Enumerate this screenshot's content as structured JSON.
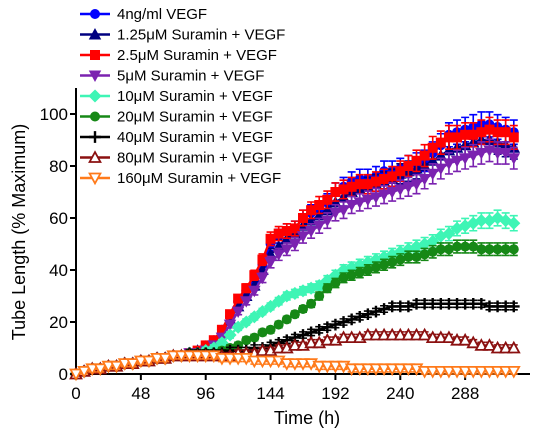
{
  "chart_data": {
    "type": "line",
    "title": "",
    "xlabel": "Time (h)",
    "ylabel": "Tube Length (% Maximum)",
    "xlim": [
      0,
      336
    ],
    "ylim": [
      0,
      110
    ],
    "x_ticks": [
      0,
      48,
      96,
      144,
      192,
      240,
      288
    ],
    "y_ticks": [
      0,
      20,
      40,
      60,
      80,
      100
    ],
    "x": [
      0,
      6,
      12,
      18,
      24,
      30,
      36,
      42,
      48,
      54,
      60,
      66,
      72,
      78,
      84,
      90,
      96,
      102,
      108,
      114,
      120,
      126,
      132,
      138,
      144,
      150,
      156,
      162,
      168,
      174,
      180,
      186,
      192,
      198,
      204,
      210,
      216,
      222,
      228,
      234,
      240,
      246,
      252,
      258,
      264,
      270,
      276,
      282,
      288,
      294,
      300,
      306,
      312,
      318,
      324
    ],
    "legend_position": "top-left",
    "error_bars": true,
    "series": [
      {
        "name": "4ng/ml VEGF",
        "color": "#0000ff",
        "marker": "circle",
        "values": [
          0,
          1,
          2,
          2,
          3,
          3,
          4,
          4,
          5,
          5,
          6,
          6,
          7,
          7,
          8,
          9,
          11,
          13,
          17,
          22,
          28,
          32,
          36,
          42,
          50,
          53,
          55,
          56,
          60,
          62,
          63,
          66,
          70,
          72,
          74,
          75,
          75,
          76,
          78,
          78,
          79,
          80,
          81,
          82,
          85,
          88,
          92,
          93,
          94,
          95,
          96,
          96,
          95,
          94,
          93
        ]
      },
      {
        "name": "1.25μM Suramin + VEGF",
        "color": "#000080",
        "marker": "triangle-up",
        "values": [
          0,
          1,
          2,
          2,
          3,
          3,
          4,
          4,
          5,
          5,
          6,
          6,
          7,
          7,
          8,
          9,
          10,
          12,
          16,
          21,
          26,
          30,
          34,
          40,
          46,
          49,
          52,
          54,
          57,
          59,
          61,
          63,
          66,
          68,
          70,
          71,
          72,
          73,
          74,
          75,
          77,
          78,
          79,
          80,
          82,
          84,
          86,
          87,
          88,
          89,
          90,
          90,
          89,
          88,
          87
        ]
      },
      {
        "name": "2.5μM Suramin + VEGF",
        "color": "#ff0000",
        "marker": "square",
        "values": [
          0,
          1,
          2,
          2,
          3,
          3,
          4,
          4,
          5,
          5,
          6,
          6,
          7,
          7,
          8,
          9,
          11,
          13,
          17,
          23,
          29,
          33,
          38,
          44,
          52,
          54,
          55,
          56,
          60,
          63,
          65,
          67,
          70,
          71,
          72,
          73,
          73,
          74,
          75,
          76,
          78,
          80,
          82,
          84,
          87,
          89,
          91,
          91,
          92,
          92,
          93,
          94,
          93,
          93,
          91
        ]
      },
      {
        "name": "5μM Suramin + VEGF",
        "color": "#7b22b0",
        "marker": "triangle-down",
        "values": [
          0,
          1,
          2,
          2,
          3,
          3,
          4,
          4,
          5,
          5,
          6,
          6,
          7,
          7,
          8,
          8,
          9,
          11,
          14,
          19,
          24,
          28,
          32,
          37,
          43,
          46,
          48,
          50,
          53,
          55,
          57,
          59,
          62,
          63,
          65,
          66,
          67,
          68,
          69,
          70,
          71,
          72,
          73,
          75,
          77,
          79,
          81,
          82,
          83,
          84,
          85,
          86,
          85,
          85,
          83
        ]
      },
      {
        "name": "10μM Suramin + VEGF",
        "color": "#3ef5b5",
        "marker": "diamond",
        "values": [
          0,
          1,
          2,
          2,
          3,
          3,
          4,
          4,
          5,
          5,
          6,
          6,
          7,
          7,
          8,
          8,
          9,
          10,
          12,
          15,
          18,
          20,
          22,
          24,
          26,
          28,
          30,
          31,
          32,
          33,
          34,
          36,
          38,
          40,
          41,
          42,
          43,
          44,
          45,
          46,
          47,
          48,
          49,
          50,
          51,
          53,
          54,
          56,
          57,
          58,
          59,
          59,
          60,
          59,
          58
        ]
      },
      {
        "name": "20μM Suramin + VEGF",
        "color": "#168816",
        "marker": "circle",
        "values": [
          0,
          1,
          2,
          2,
          3,
          3,
          4,
          4,
          5,
          5,
          6,
          6,
          7,
          7,
          8,
          8,
          8,
          8,
          9,
          10,
          11,
          13,
          14,
          16,
          17,
          19,
          21,
          23,
          25,
          27,
          30,
          33,
          35,
          37,
          38,
          39,
          40,
          41,
          42,
          43,
          44,
          45,
          45,
          46,
          47,
          48,
          48,
          49,
          49,
          49,
          48,
          48,
          48,
          48,
          48
        ]
      },
      {
        "name": "40μM Suramin + VEGF",
        "color": "#000000",
        "marker": "plus",
        "values": [
          0,
          1,
          2,
          2,
          3,
          3,
          4,
          4,
          5,
          5,
          6,
          6,
          7,
          7,
          8,
          8,
          8,
          8,
          8,
          9,
          9,
          9,
          10,
          10,
          11,
          12,
          13,
          14,
          15,
          16,
          17,
          18,
          19,
          20,
          21,
          22,
          23,
          24,
          25,
          26,
          26,
          26,
          27,
          27,
          27,
          27,
          27,
          27,
          27,
          27,
          27,
          26,
          26,
          26,
          26
        ]
      },
      {
        "name": "80μM Suramin + VEGF",
        "color": "#8b1010",
        "marker": "triangle-up-open",
        "values": [
          0,
          1,
          2,
          2,
          3,
          3,
          4,
          4,
          5,
          5,
          6,
          6,
          7,
          7,
          7,
          7,
          7,
          7,
          7,
          7,
          8,
          8,
          8,
          9,
          9,
          10,
          10,
          11,
          11,
          12,
          12,
          13,
          13,
          14,
          14,
          14,
          15,
          15,
          15,
          15,
          15,
          15,
          15,
          15,
          14,
          14,
          14,
          13,
          13,
          12,
          11,
          11,
          10,
          10,
          10
        ]
      },
      {
        "name": "160μM Suramin + VEGF",
        "color": "#ff7a1a",
        "marker": "triangle-down-open",
        "values": [
          0,
          1,
          2,
          2,
          3,
          3,
          4,
          4,
          5,
          5,
          6,
          6,
          7,
          7,
          7,
          7,
          7,
          7,
          6,
          6,
          6,
          6,
          5,
          5,
          5,
          5,
          4,
          4,
          4,
          4,
          3,
          3,
          3,
          3,
          2,
          2,
          2,
          2,
          2,
          2,
          2,
          2,
          2,
          1,
          1,
          1,
          1,
          1,
          1,
          1,
          1,
          1,
          1,
          1,
          1
        ]
      }
    ]
  }
}
